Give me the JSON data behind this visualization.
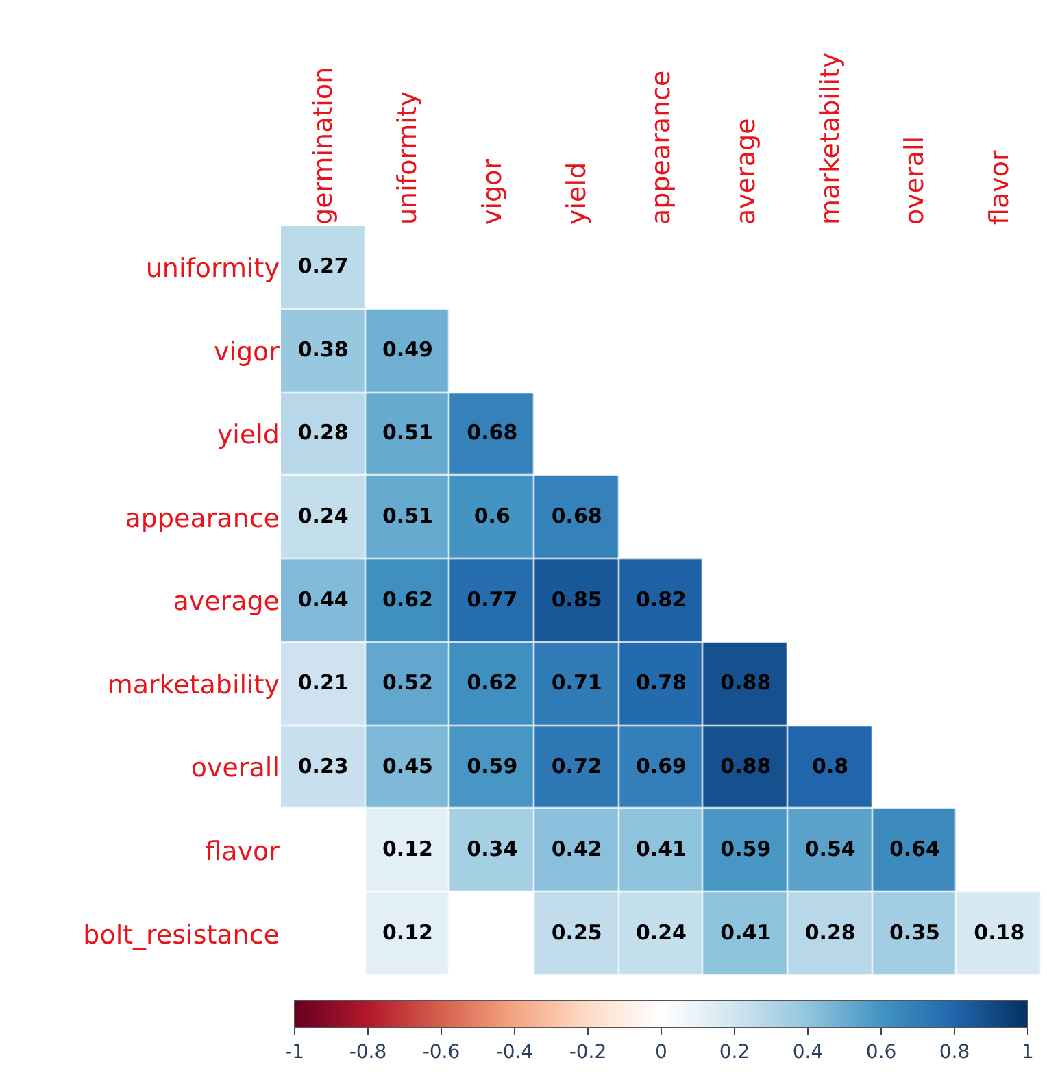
{
  "chart_data": {
    "type": "heatmap",
    "categories": [
      "germination",
      "uniformity",
      "vigor",
      "yield",
      "appearance",
      "average",
      "marketability",
      "overall",
      "flavor"
    ],
    "y_categories": [
      "uniformity",
      "vigor",
      "yield",
      "appearance",
      "average",
      "marketability",
      "overall",
      "flavor",
      "bolt_resistance"
    ],
    "cells": [
      [
        0.27,
        null,
        null,
        null,
        null,
        null,
        null,
        null,
        null
      ],
      [
        0.38,
        0.49,
        null,
        null,
        null,
        null,
        null,
        null,
        null
      ],
      [
        0.28,
        0.51,
        0.68,
        null,
        null,
        null,
        null,
        null,
        null
      ],
      [
        0.24,
        0.51,
        0.6,
        0.68,
        null,
        null,
        null,
        null,
        null
      ],
      [
        0.44,
        0.62,
        0.77,
        0.85,
        0.82,
        null,
        null,
        null,
        null
      ],
      [
        0.21,
        0.52,
        0.62,
        0.71,
        0.78,
        0.88,
        null,
        null,
        null
      ],
      [
        0.23,
        0.45,
        0.59,
        0.72,
        0.69,
        0.88,
        0.8,
        null,
        null
      ],
      [
        null,
        0.12,
        0.34,
        0.42,
        0.41,
        0.59,
        0.54,
        0.64,
        null
      ],
      [
        null,
        0.12,
        null,
        0.25,
        0.24,
        0.41,
        0.28,
        0.35,
        0.18
      ]
    ],
    "clim": [
      -1,
      1
    ],
    "cticks": [
      -1,
      -0.8,
      -0.6,
      -0.4,
      -0.2,
      0,
      0.2,
      0.4,
      0.6,
      0.8,
      1
    ],
    "data_labels": true
  }
}
